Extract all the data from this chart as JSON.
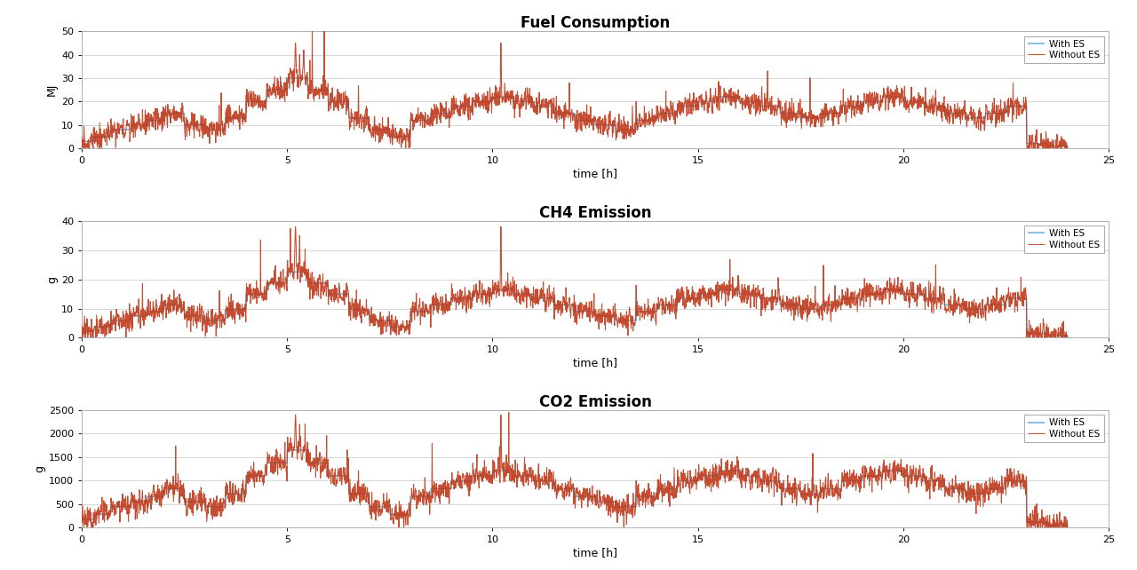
{
  "title1": "Fuel Consumption",
  "title2": "CH4 Emission",
  "title3": "CO2 Emission",
  "xlabel": "time [h]",
  "ylabel1": "MJ",
  "ylabel2": "g",
  "ylabel3": "g",
  "xlim": [
    0,
    25
  ],
  "ylim1": [
    0,
    50
  ],
  "ylim2": [
    0,
    40
  ],
  "ylim3": [
    0,
    2500
  ],
  "yticks1": [
    0,
    10,
    20,
    30,
    40,
    50
  ],
  "yticks2": [
    0,
    10,
    20,
    30,
    40
  ],
  "yticks3": [
    0,
    500,
    1000,
    1500,
    2000,
    2500
  ],
  "xticks": [
    0,
    5,
    10,
    15,
    20,
    25
  ],
  "legend_labels": [
    "With ES",
    "Without ES"
  ],
  "color_with_es": "#6aafd6",
  "color_without_es": "#c0391a",
  "bg_color": "#ffffff",
  "title_fontsize": 12,
  "label_fontsize": 9,
  "tick_fontsize": 8,
  "legend_fontsize": 7.5,
  "linewidth_with": 1.1,
  "linewidth_without": 0.75
}
